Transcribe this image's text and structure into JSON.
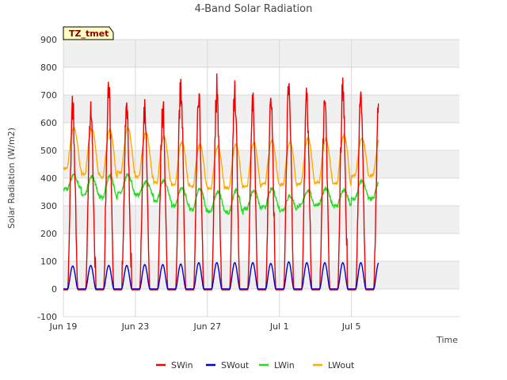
{
  "chart_data": {
    "type": "line",
    "title": "4-Band Solar Radiation",
    "xlabel": "Time",
    "ylabel": "Solar Radiation (W/m2)",
    "tag_label": "TZ_tmet",
    "xlim": [
      0,
      22
    ],
    "ylim": [
      -100,
      900
    ],
    "y_ticks": [
      -100,
      0,
      100,
      200,
      300,
      400,
      500,
      600,
      700,
      800,
      900
    ],
    "x_ticks": [
      {
        "pos": 0,
        "label": "Jun 19"
      },
      {
        "pos": 4,
        "label": "Jun 23"
      },
      {
        "pos": 8,
        "label": "Jun 27"
      },
      {
        "pos": 12,
        "label": "Jul 1"
      },
      {
        "pos": 16,
        "label": "Jul 5"
      }
    ],
    "x_range_days": [
      0,
      17.5
    ],
    "grid": true,
    "legend_position": "bottom",
    "series": [
      {
        "name": "SWin",
        "color": "#ee0000",
        "daily_peaks": [
          705,
          710,
          785,
          710,
          715,
          712,
          805,
          740,
          780,
          785,
          735,
          725,
          805,
          735,
          755,
          785,
          740
        ]
      },
      {
        "name": "SWout",
        "color": "#0000cc",
        "daily_peaks": [
          83,
          85,
          85,
          85,
          88,
          88,
          90,
          95,
          95,
          95,
          95,
          92,
          98,
          95,
          95,
          95,
          95
        ]
      },
      {
        "name": "LWin",
        "color": "#22dd22",
        "daily_peaks": [
          410,
          405,
          408,
          412,
          385,
          390,
          365,
          360,
          350,
          355,
          355,
          360,
          335,
          355,
          360,
          355,
          390
        ],
        "daily_troughs": [
          360,
          340,
          330,
          345,
          340,
          320,
          300,
          285,
          280,
          275,
          290,
          295,
          285,
          300,
          305,
          300,
          325
        ]
      },
      {
        "name": "LWout",
        "color": "#ffaa00",
        "daily_peaks": [
          580,
          578,
          575,
          580,
          565,
          550,
          530,
          520,
          515,
          520,
          530,
          535,
          530,
          545,
          540,
          555,
          545
        ],
        "daily_troughs": [
          435,
          415,
          405,
          420,
          405,
          385,
          375,
          370,
          365,
          365,
          370,
          380,
          375,
          380,
          385,
          380,
          410
        ]
      }
    ]
  }
}
